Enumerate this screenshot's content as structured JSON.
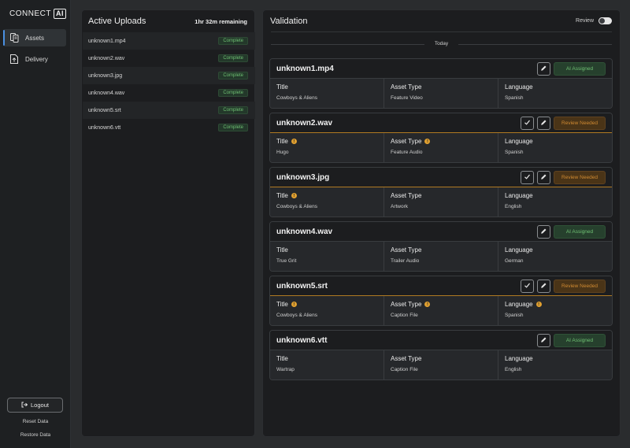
{
  "app": {
    "logo_text": "CONNECT",
    "logo_box": "AI"
  },
  "sidebar": {
    "items": [
      {
        "label": "Assets",
        "icon": "assets-icon",
        "active": true
      },
      {
        "label": "Delivery",
        "icon": "delivery-icon",
        "active": false
      }
    ],
    "logout_label": "Logout",
    "reset_label": "Reset Data",
    "restore_label": "Restore Data"
  },
  "uploads": {
    "title": "Active Uploads",
    "remaining": "1hr 32m remaining",
    "items": [
      {
        "name": "unknown1.mp4",
        "status": "Complete"
      },
      {
        "name": "unknown2.wav",
        "status": "Complete"
      },
      {
        "name": "unknown3.jpg",
        "status": "Complete"
      },
      {
        "name": "unknown4.wav",
        "status": "Complete"
      },
      {
        "name": "unknown5.srt",
        "status": "Complete"
      },
      {
        "name": "unknown6.vtt",
        "status": "Complete"
      }
    ]
  },
  "validation": {
    "title": "Validation",
    "review_label": "Review",
    "date_divider": "Today",
    "field_labels": {
      "title": "Title",
      "asset_type": "Asset Type",
      "language": "Language"
    },
    "assets": [
      {
        "name": "unknown1.mp4",
        "status": "AI Assigned",
        "title": "Cowboys & Aliens",
        "asset_type": "Feature Video",
        "language": "Spanish"
      },
      {
        "name": "unknown2.wav",
        "status": "Review Needed",
        "title": "Hugo",
        "asset_type": "Feature Audio",
        "language": "Spanish"
      },
      {
        "name": "unknown3.jpg",
        "status": "Review Needed",
        "title": "Cowboys & Aliens",
        "asset_type": "Artwork",
        "language": "English"
      },
      {
        "name": "unknown4.wav",
        "status": "AI Assigned",
        "title": "True Grit",
        "asset_type": "Trailer Audio",
        "language": "German"
      },
      {
        "name": "unknown5.srt",
        "status": "Review Needed",
        "title": "Cowboys & Aliens",
        "asset_type": "Caption File",
        "language": "Spanish"
      },
      {
        "name": "unknown6.vtt",
        "status": "AI Assigned",
        "title": "Wartrap",
        "asset_type": "Caption File",
        "language": "English"
      }
    ]
  },
  "colors": {
    "accent": "#4a90e2",
    "success": "#6fbf73",
    "warning": "#d08a32"
  }
}
